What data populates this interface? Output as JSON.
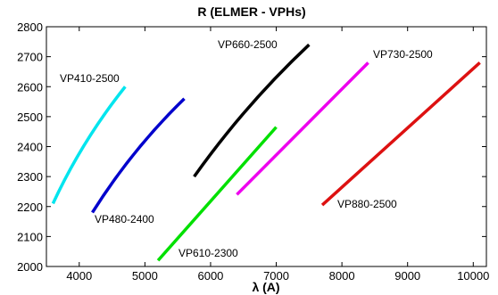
{
  "chart_data": {
    "type": "line",
    "title": "R  (ELMER - VPHs)",
    "xlabel": "λ (A)",
    "ylabel": "",
    "xlim": [
      3500,
      10200
    ],
    "ylim": [
      2000,
      2800
    ],
    "xticks": [
      4000,
      5000,
      6000,
      7000,
      8000,
      9000,
      10000
    ],
    "yticks": [
      2000,
      2100,
      2200,
      2300,
      2400,
      2500,
      2600,
      2700,
      2800
    ],
    "grid": false,
    "legend": "none",
    "series": [
      {
        "name": "VP410-2500",
        "color": "#00e5ee",
        "x": [
          3600,
          4700
        ],
        "y": [
          2210,
          2600
        ],
        "curve": 0.06
      },
      {
        "name": "VP480-2400",
        "color": "#0000cc",
        "x": [
          4200,
          5600
        ],
        "y": [
          2180,
          2560
        ],
        "curve": 0.06
      },
      {
        "name": "VP610-2300",
        "color": "#00e000",
        "x": [
          5200,
          7000
        ],
        "y": [
          2020,
          2465
        ],
        "curve": 0.0
      },
      {
        "name": "VP660-2500",
        "color": "#000000",
        "x": [
          5750,
          7500
        ],
        "y": [
          2300,
          2740
        ],
        "curve": 0.05
      },
      {
        "name": "VP730-2500",
        "color": "#ee00ee",
        "x": [
          6400,
          8400
        ],
        "y": [
          2240,
          2680
        ],
        "curve": 0.0
      },
      {
        "name": "VP880-2500",
        "color": "#dd1111",
        "x": [
          7700,
          10100
        ],
        "y": [
          2205,
          2680
        ],
        "curve": 0.0
      }
    ]
  }
}
